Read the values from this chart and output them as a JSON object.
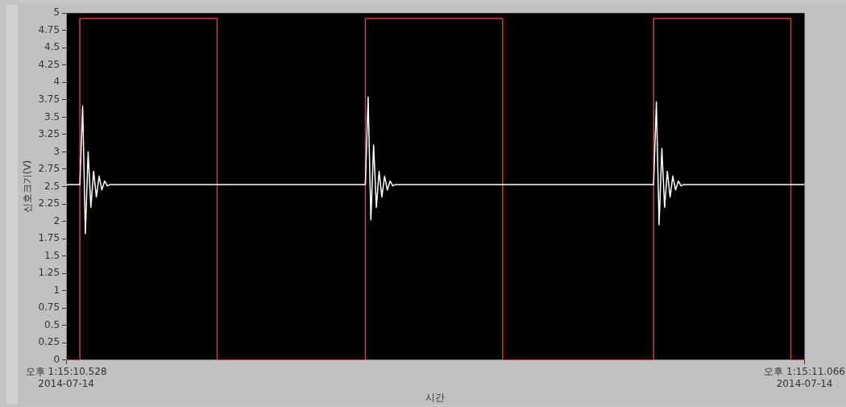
{
  "chart_data": {
    "type": "line",
    "xlabel": "시간",
    "ylabel": "신호크기(V)",
    "categories": [
      "오후 1:15:10.528\n2014-07-14",
      null,
      null,
      null,
      null,
      null,
      null,
      null,
      null,
      null,
      null,
      null,
      null,
      null,
      null,
      null,
      null,
      null,
      null,
      null,
      null,
      null,
      null,
      null,
      null,
      null,
      null,
      null,
      null,
      null,
      null,
      null,
      null,
      null,
      null,
      null,
      null,
      null,
      null,
      null,
      null,
      null,
      null,
      null,
      null,
      null,
      null,
      null,
      null,
      null,
      null,
      null,
      null,
      null,
      null,
      null,
      null,
      null,
      null,
      null,
      null,
      null,
      null,
      null,
      null,
      null,
      null,
      null,
      null,
      null,
      null,
      null,
      null,
      null,
      null,
      null,
      null,
      null,
      null,
      null,
      null,
      null,
      null,
      null,
      null,
      null,
      null,
      null,
      null,
      null,
      null,
      null,
      null,
      null,
      null,
      null,
      null,
      null,
      null,
      null,
      null,
      null,
      null,
      null,
      null,
      null,
      null,
      null,
      null,
      null,
      null,
      null,
      null,
      null,
      null,
      null,
      null,
      null,
      null,
      null,
      null,
      null,
      null,
      null,
      null,
      null,
      null,
      null,
      null,
      null,
      null,
      null,
      null,
      null,
      null,
      null,
      null,
      null,
      null,
      null,
      null,
      null,
      null,
      null,
      null,
      null,
      null,
      null,
      null,
      null,
      null,
      null,
      null,
      null,
      null,
      null,
      null,
      null,
      null,
      null,
      null,
      null,
      null,
      null,
      null,
      null,
      null,
      null,
      null,
      null,
      null,
      null,
      null,
      null,
      null,
      null,
      null,
      null,
      null,
      null,
      null,
      null,
      null,
      null,
      null,
      null,
      null,
      null,
      null,
      null,
      null,
      null,
      null,
      null,
      null,
      null,
      null,
      null,
      null,
      null,
      null,
      null,
      null,
      null,
      null,
      null,
      null,
      null,
      null,
      null,
      null,
      null,
      null,
      null,
      null,
      null,
      null,
      null,
      null,
      null,
      null,
      null,
      null,
      null,
      null,
      null,
      null,
      null,
      null,
      null,
      null,
      null,
      null,
      null,
      null,
      null,
      null,
      null,
      null,
      null,
      null,
      null,
      null,
      null,
      null,
      null,
      null,
      null,
      null,
      null,
      null,
      null,
      null,
      null,
      null,
      null,
      null,
      null,
      null,
      null,
      null,
      null,
      null,
      null,
      null,
      null,
      null,
      null,
      null,
      "오후 1:15:11.066\n2014-07-14"
    ],
    "ylim": [
      0,
      5
    ],
    "yticks": [
      0,
      0.25,
      0.5,
      0.75,
      1,
      1.25,
      1.5,
      1.75,
      2,
      2.25,
      2.5,
      2.75,
      3,
      3.25,
      3.5,
      3.75,
      4,
      4.25,
      4.5,
      4.75,
      5
    ],
    "grid": false,
    "legend": false,
    "marker": "none",
    "line_style": "solid",
    "series": [
      {
        "color": "#ffffff",
        "values": [
          2.53,
          2.53,
          2.53,
          2.53,
          2.53,
          2.53,
          3.66,
          1.82,
          3.0,
          2.2,
          2.72,
          2.35,
          2.65,
          2.45,
          2.58,
          2.51,
          2.53,
          2.53,
          2.53,
          2.53,
          2.53,
          2.53,
          2.53,
          2.53,
          2.53,
          2.53,
          2.53,
          2.53,
          2.53,
          2.53,
          2.53,
          2.53,
          2.53,
          2.53,
          2.53,
          2.53,
          2.53,
          2.53,
          2.53,
          2.53,
          2.53,
          2.53,
          2.53,
          2.53,
          2.53,
          2.53,
          2.53,
          2.53,
          2.53,
          2.53,
          2.53,
          2.53,
          2.53,
          2.53,
          2.53,
          2.53,
          2.53,
          2.53,
          2.53,
          2.53,
          2.53,
          2.53,
          2.53,
          2.53,
          2.53,
          2.53,
          2.53,
          2.53,
          2.53,
          2.53,
          2.53,
          2.53,
          2.53,
          2.53,
          2.53,
          2.53,
          2.53,
          2.53,
          2.53,
          2.53,
          2.53,
          2.53,
          2.53,
          2.53,
          2.53,
          2.53,
          2.53,
          2.53,
          2.53,
          2.53,
          2.53,
          2.53,
          2.53,
          2.53,
          2.53,
          2.53,
          2.53,
          2.53,
          2.53,
          2.53,
          2.53,
          2.53,
          2.53,
          2.53,
          2.53,
          2.53,
          2.53,
          2.53,
          2.53,
          2.53,
          3.79,
          2.02,
          3.1,
          2.2,
          2.72,
          2.35,
          2.65,
          2.45,
          2.58,
          2.51,
          2.53,
          2.53,
          2.53,
          2.53,
          2.53,
          2.53,
          2.53,
          2.53,
          2.53,
          2.53,
          2.53,
          2.53,
          2.53,
          2.53,
          2.53,
          2.53,
          2.53,
          2.53,
          2.53,
          2.53,
          2.53,
          2.53,
          2.53,
          2.53,
          2.53,
          2.53,
          2.53,
          2.53,
          2.53,
          2.53,
          2.53,
          2.53,
          2.53,
          2.53,
          2.53,
          2.53,
          2.53,
          2.53,
          2.53,
          2.53,
          2.53,
          2.53,
          2.53,
          2.53,
          2.53,
          2.53,
          2.53,
          2.53,
          2.53,
          2.53,
          2.53,
          2.53,
          2.53,
          2.53,
          2.53,
          2.53,
          2.53,
          2.53,
          2.53,
          2.53,
          2.53,
          2.53,
          2.53,
          2.53,
          2.53,
          2.53,
          2.53,
          2.53,
          2.53,
          2.53,
          2.53,
          2.53,
          2.53,
          2.53,
          2.53,
          2.53,
          2.53,
          2.53,
          2.53,
          2.53,
          2.53,
          2.53,
          2.53,
          2.53,
          2.53,
          2.53,
          2.53,
          2.53,
          2.53,
          2.53,
          2.53,
          2.53,
          2.53,
          2.53,
          2.53,
          3.72,
          1.95,
          3.05,
          2.2,
          2.72,
          2.35,
          2.65,
          2.45,
          2.58,
          2.51,
          2.53,
          2.53,
          2.53,
          2.53,
          2.53,
          2.53,
          2.53,
          2.53,
          2.53,
          2.53,
          2.53,
          2.53,
          2.53,
          2.53,
          2.53,
          2.53,
          2.53,
          2.53,
          2.53,
          2.53,
          2.53,
          2.53,
          2.53,
          2.53,
          2.53,
          2.53,
          2.53,
          2.53,
          2.53,
          2.53,
          2.53,
          2.53,
          2.53,
          2.53,
          2.53,
          2.53,
          2.53,
          2.53,
          2.53,
          2.53,
          2.53,
          2.53,
          2.53,
          2.53,
          2.53
        ]
      },
      {
        "type": "step",
        "color": "#e8313a",
        "values": [
          0,
          0,
          0,
          0,
          0,
          0,
          4.92,
          4.92,
          4.92,
          4.92,
          4.92,
          4.92,
          4.92,
          4.92,
          4.92,
          4.92,
          4.92,
          4.92,
          4.92,
          4.92,
          4.92,
          4.92,
          4.92,
          4.92,
          4.92,
          4.92,
          4.92,
          4.92,
          4.92,
          4.92,
          4.92,
          4.92,
          4.92,
          4.92,
          4.92,
          4.92,
          4.92,
          4.92,
          4.92,
          4.92,
          4.92,
          4.92,
          4.92,
          4.92,
          4.92,
          4.92,
          4.92,
          4.92,
          4.92,
          4.92,
          4.92,
          4.92,
          4.92,
          4.92,
          4.92,
          4.92,
          0,
          0,
          0,
          0,
          0,
          0,
          0,
          0,
          0,
          0,
          0,
          0,
          0,
          0,
          0,
          0,
          0,
          0,
          0,
          0,
          0,
          0,
          0,
          0,
          0,
          0,
          0,
          0,
          0,
          0,
          0,
          0,
          0,
          0,
          0,
          0,
          0,
          0,
          0,
          0,
          0,
          0,
          0,
          0,
          0,
          0,
          0,
          0,
          0,
          0,
          0,
          0,
          0,
          0,
          4.92,
          4.92,
          4.92,
          4.92,
          4.92,
          4.92,
          4.92,
          4.92,
          4.92,
          4.92,
          4.92,
          4.92,
          4.92,
          4.92,
          4.92,
          4.92,
          4.92,
          4.92,
          4.92,
          4.92,
          4.92,
          4.92,
          4.92,
          4.92,
          4.92,
          4.92,
          4.92,
          4.92,
          4.92,
          4.92,
          4.92,
          4.92,
          4.92,
          4.92,
          4.92,
          4.92,
          4.92,
          4.92,
          4.92,
          4.92,
          4.92,
          4.92,
          4.92,
          4.92,
          4.92,
          4.92,
          4.92,
          4.92,
          4.92,
          4.92,
          0,
          0,
          0,
          0,
          0,
          0,
          0,
          0,
          0,
          0,
          0,
          0,
          0,
          0,
          0,
          0,
          0,
          0,
          0,
          0,
          0,
          0,
          0,
          0,
          0,
          0,
          0,
          0,
          0,
          0,
          0,
          0,
          0,
          0,
          0,
          0,
          0,
          0,
          0,
          0,
          0,
          0,
          0,
          0,
          0,
          0,
          0,
          0,
          0,
          0,
          0,
          0,
          0,
          0,
          0,
          4.92,
          4.92,
          4.92,
          4.92,
          4.92,
          4.92,
          4.92,
          4.92,
          4.92,
          4.92,
          4.92,
          4.92,
          4.92,
          4.92,
          4.92,
          4.92,
          4.92,
          4.92,
          4.92,
          4.92,
          4.92,
          4.92,
          4.92,
          4.92,
          4.92,
          4.92,
          4.92,
          4.92,
          4.92,
          4.92,
          4.92,
          4.92,
          4.92,
          4.92,
          4.92,
          4.92,
          4.92,
          4.92,
          4.92,
          4.92,
          4.92,
          4.92,
          4.92,
          4.92,
          4.92,
          4.92,
          4.92,
          4.92,
          4.92,
          4.92,
          0,
          0,
          0,
          0,
          0
        ]
      }
    ]
  }
}
